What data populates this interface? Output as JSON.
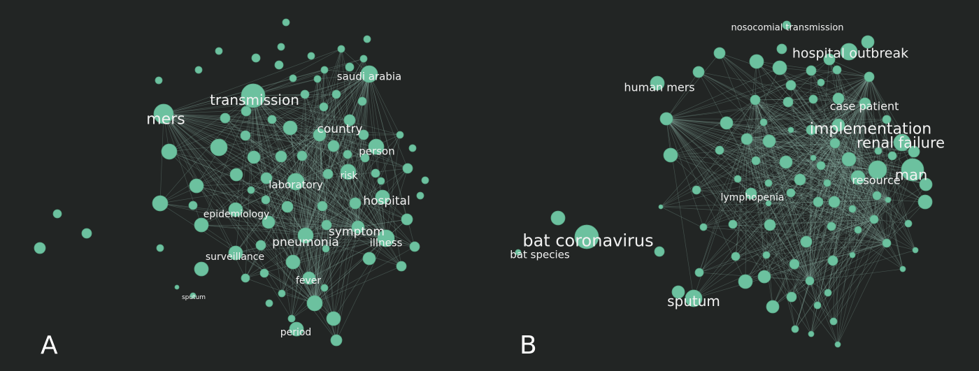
{
  "panels": [
    {
      "letter": "A",
      "terms": [
        "mers",
        "transmission",
        "saudi arabia",
        "country",
        "person",
        "risk",
        "laboratory",
        "hospital",
        "epidemiology",
        "symptom",
        "pneumonia",
        "illness",
        "surveillance",
        "fever",
        "sputum",
        "period"
      ]
    },
    {
      "letter": "B",
      "terms": [
        "nosocomial transmission",
        "hospital outbreak",
        "human mers",
        "case patient",
        "implementation",
        "renal failure",
        "man",
        "resource",
        "lymphopenia",
        "bat coronavirus",
        "bat species",
        "sputum"
      ]
    }
  ],
  "colors": {
    "background": "#222524",
    "node": "#6cc19f",
    "edge": "#8fb5a8",
    "label": "#f2f2f2"
  }
}
